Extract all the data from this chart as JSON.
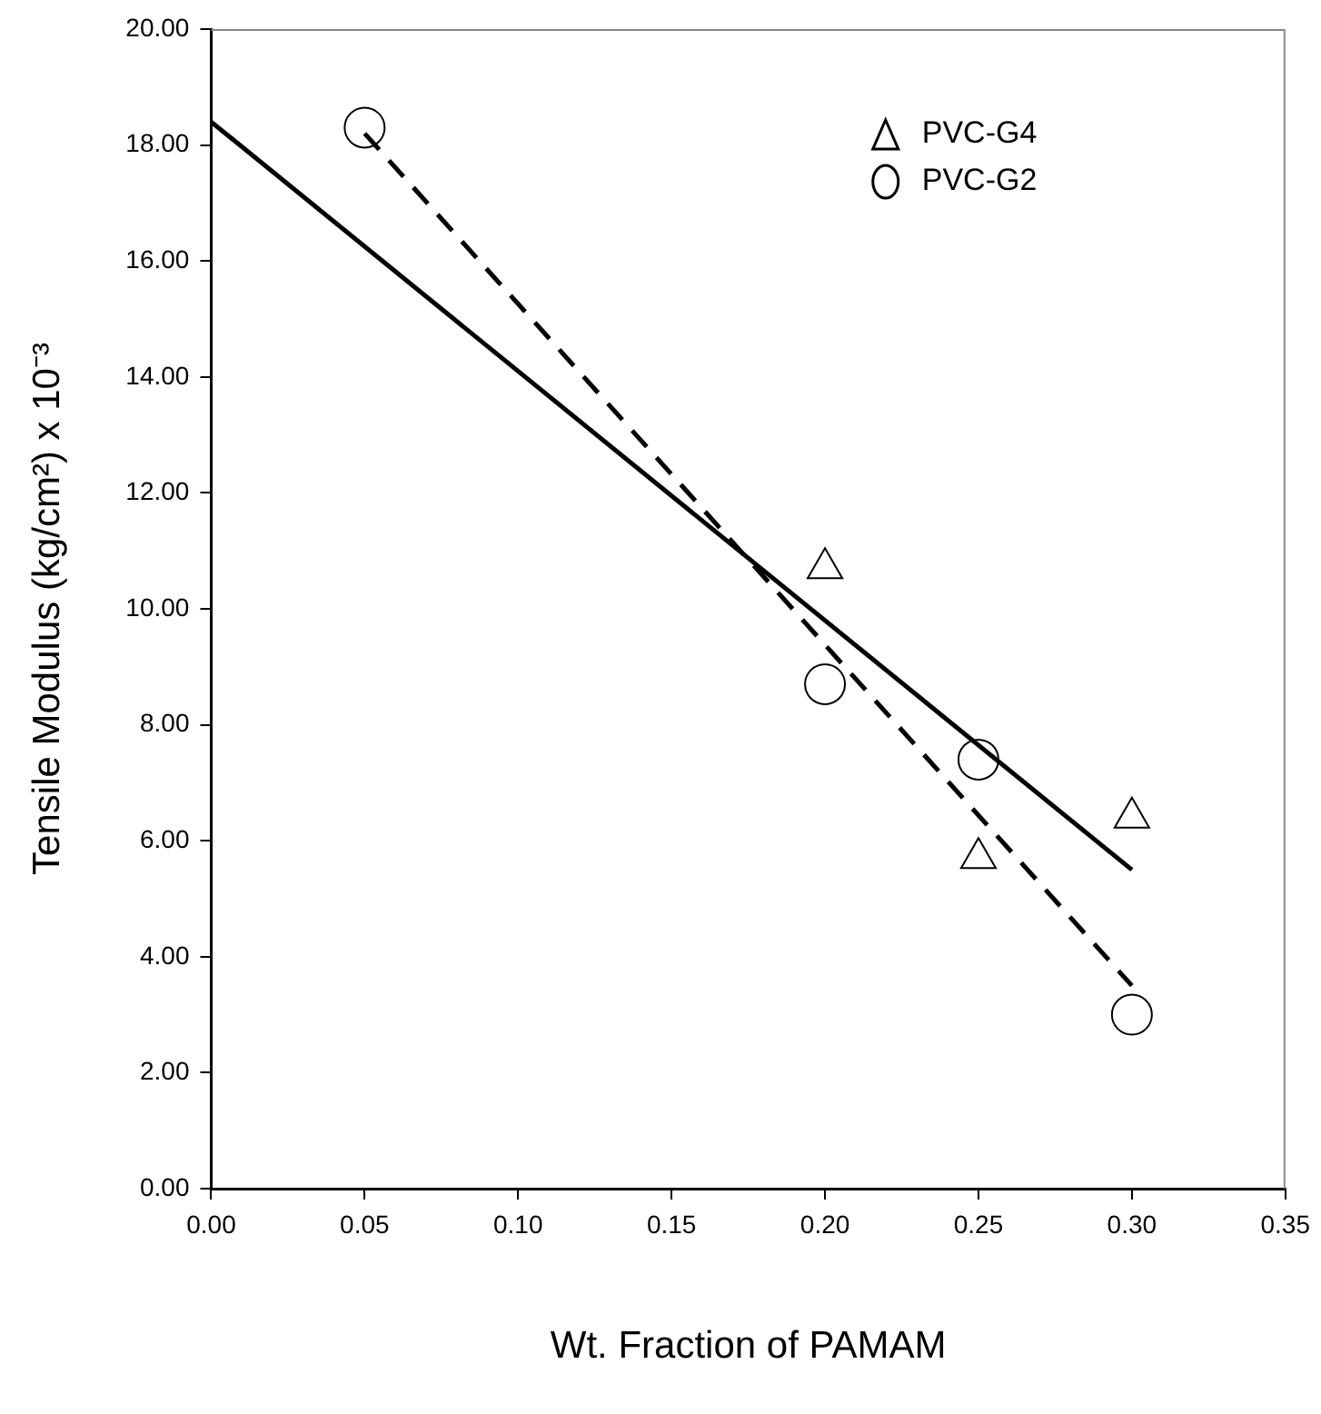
{
  "chart_data": {
    "type": "scatter",
    "xlabel": "Wt. Fraction of PAMAM",
    "ylabel": "Tensile Modulus (kg/cm²) x 10⁻³",
    "series": [
      {
        "name": "PVC-G4",
        "color": "#000000",
        "marker": "triangle",
        "x": [
          0.2,
          0.25,
          0.3
        ],
        "values": [
          10.7,
          5.7,
          6.4
        ]
      },
      {
        "name": "PVC-G2",
        "color": "#000000",
        "marker": "circle",
        "x": [
          0.05,
          0.2,
          0.25,
          0.3
        ],
        "values": [
          18.3,
          8.7,
          7.4,
          3.0
        ]
      },
      {
        "type": "line",
        "color": "#000000",
        "marker": "none",
        "line_style": "solid",
        "x": [
          0,
          0.3
        ],
        "values": [
          18.4,
          5.5
        ]
      },
      {
        "type": "line",
        "color": "#000000",
        "marker": "none",
        "line_style": "dashed",
        "x": [
          0.05,
          0.3
        ],
        "values": [
          18.2,
          3.5
        ]
      }
    ],
    "xlim": [
      0,
      0.35
    ],
    "xticks": [
      {
        "value": 0,
        "label": "0.00"
      },
      {
        "value": 0.05,
        "label": "0.05"
      },
      {
        "value": 0.1,
        "label": "0.10"
      },
      {
        "value": 0.15,
        "label": "0.15"
      },
      {
        "value": 0.2,
        "label": "0.20"
      },
      {
        "value": 0.25,
        "label": "0.25"
      },
      {
        "value": 0.3,
        "label": "0.30"
      },
      {
        "value": 0.35,
        "label": "0.35"
      }
    ],
    "ylim": [
      0,
      20
    ],
    "yticks": [
      {
        "value": 0,
        "label": "0.00"
      },
      {
        "value": 2,
        "label": "2.00"
      },
      {
        "value": 4,
        "label": "4.00"
      },
      {
        "value": 6,
        "label": "6.00"
      },
      {
        "value": 8,
        "label": "8.00"
      },
      {
        "value": 10,
        "label": "10.00"
      },
      {
        "value": 12,
        "label": "12.00"
      },
      {
        "value": 14,
        "label": "14.00"
      },
      {
        "value": 16,
        "label": "16.00"
      },
      {
        "value": 18,
        "label": "18.00"
      },
      {
        "value": 20,
        "label": "20.00"
      }
    ],
    "grid": false,
    "legend": "top right"
  }
}
